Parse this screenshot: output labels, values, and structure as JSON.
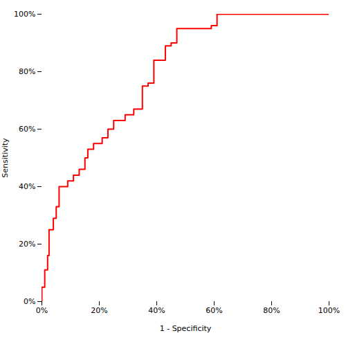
{
  "chart_data": {
    "type": "line",
    "xlabel": "1 - Specificity",
    "ylabel": "Sensitivity",
    "x": [
      0.0,
      0.0,
      0.01,
      0.01,
      0.02,
      0.02,
      0.025,
      0.025,
      0.04,
      0.04,
      0.05,
      0.05,
      0.06,
      0.06,
      0.09,
      0.09,
      0.11,
      0.11,
      0.13,
      0.13,
      0.15,
      0.15,
      0.16,
      0.16,
      0.18,
      0.18,
      0.21,
      0.21,
      0.23,
      0.23,
      0.25,
      0.25,
      0.29,
      0.29,
      0.32,
      0.32,
      0.35,
      0.35,
      0.37,
      0.37,
      0.39,
      0.39,
      0.43,
      0.43,
      0.45,
      0.45,
      0.47,
      0.47,
      0.59,
      0.59,
      0.61,
      0.61,
      0.64,
      1.0
    ],
    "values": [
      0.0,
      0.05,
      0.05,
      0.11,
      0.11,
      0.16,
      0.16,
      0.25,
      0.25,
      0.29,
      0.29,
      0.33,
      0.33,
      0.4,
      0.4,
      0.42,
      0.42,
      0.44,
      0.44,
      0.46,
      0.46,
      0.5,
      0.5,
      0.53,
      0.53,
      0.55,
      0.55,
      0.57,
      0.57,
      0.6,
      0.6,
      0.63,
      0.63,
      0.65,
      0.65,
      0.67,
      0.67,
      0.75,
      0.75,
      0.76,
      0.76,
      0.84,
      0.84,
      0.89,
      0.89,
      0.9,
      0.9,
      0.95,
      0.95,
      0.96,
      0.96,
      1.0,
      1.0,
      1.0
    ],
    "color": "#ff0000",
    "xlim": [
      0.0,
      1.0
    ],
    "ylim": [
      0.0,
      1.0
    ],
    "xticks": [
      {
        "value": 0.0,
        "label": "0%"
      },
      {
        "value": 0.2,
        "label": "20%"
      },
      {
        "value": 0.4,
        "label": "40%"
      },
      {
        "value": 0.6,
        "label": "60%"
      },
      {
        "value": 0.8,
        "label": "80%"
      },
      {
        "value": 1.0,
        "label": "100%"
      }
    ],
    "yticks": [
      {
        "value": 0.0,
        "label": "0%"
      },
      {
        "value": 0.2,
        "label": "20%"
      },
      {
        "value": 0.4,
        "label": "40%"
      },
      {
        "value": 0.6,
        "label": "60%"
      },
      {
        "value": 0.8,
        "label": "80%"
      },
      {
        "value": 1.0,
        "label": "100%"
      }
    ],
    "grid": false
  }
}
